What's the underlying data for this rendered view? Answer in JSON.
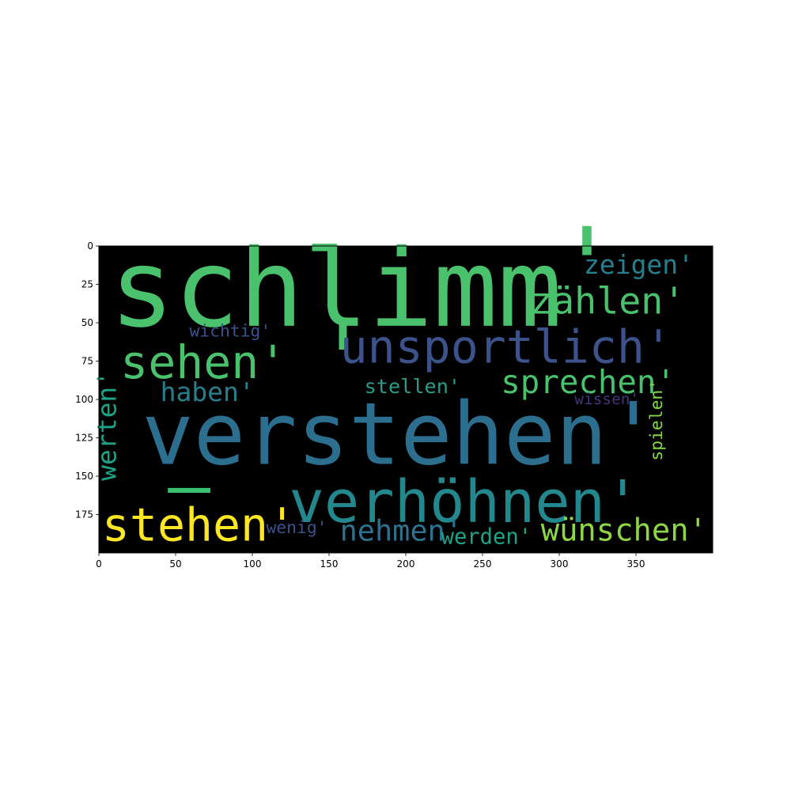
{
  "chart_data": {
    "type": "wordcloud",
    "title": "",
    "xlabel": "",
    "ylabel": "",
    "xlim": [
      0,
      400
    ],
    "ylim": [
      200,
      0
    ],
    "xticks": [
      0,
      50,
      100,
      150,
      200,
      250,
      300,
      350
    ],
    "yticks": [
      0,
      25,
      50,
      75,
      100,
      125,
      150,
      175
    ],
    "background": "#000000",
    "words": [
      {
        "text": "schlimm",
        "size": 70,
        "x": 7,
        "y": 52,
        "color": "#4ac16d",
        "rotate": 0
      },
      {
        "text": "'",
        "size": 70,
        "x": 297,
        "y": 38,
        "color": "#4ac16d",
        "rotate": 0
      },
      {
        "text": "zeigen'",
        "size": 17,
        "x": 316,
        "y": 18,
        "color": "#277f8e",
        "rotate": 0
      },
      {
        "text": "zählen'",
        "size": 24,
        "x": 281,
        "y": 44,
        "color": "#4ac16d",
        "rotate": 0
      },
      {
        "text": "'",
        "size": 60,
        "x": 141,
        "y": 95,
        "color": "#4ac16d",
        "rotate": 0
      },
      {
        "text": "unsportlich'",
        "size": 30,
        "x": 157,
        "y": 76,
        "color": "#3b528b",
        "rotate": 0
      },
      {
        "text": "sehen'",
        "size": 30,
        "x": 14,
        "y": 86,
        "color": "#4ac16d",
        "rotate": 0
      },
      {
        "text": "wichtig'",
        "size": 11,
        "x": 59,
        "y": 59,
        "color": "#3b528b",
        "rotate": 0
      },
      {
        "text": "haben'",
        "size": 17,
        "x": 40,
        "y": 101,
        "color": "#277f8e",
        "rotate": 0
      },
      {
        "text": "stellen'",
        "size": 13,
        "x": 173,
        "y": 96,
        "color": "#2a9d8a",
        "rotate": 0
      },
      {
        "text": "sprechen'",
        "size": 21,
        "x": 262,
        "y": 96,
        "color": "#4ac16d",
        "rotate": 0
      },
      {
        "text": "wissen'",
        "size": 10,
        "x": 310,
        "y": 103,
        "color": "#46337e",
        "rotate": 0
      },
      {
        "text": "werten'",
        "size": 17,
        "x": 11,
        "y": 153,
        "color": "#1fa287",
        "rotate": 270
      },
      {
        "text": "verstehen'",
        "size": 56,
        "x": 28,
        "y": 142,
        "color": "#2c6e8e",
        "rotate": 0
      },
      {
        "text": "spielen'",
        "size": 11,
        "x": 367,
        "y": 140,
        "color": "#86d549",
        "rotate": 270
      },
      {
        "text": "—",
        "size": 46,
        "x": 45,
        "y": 172,
        "color": "#3ac16d",
        "rotate": 0
      },
      {
        "text": "verhöhnen'",
        "size": 38,
        "x": 124,
        "y": 180,
        "color": "#23888e",
        "rotate": 0
      },
      {
        "text": "stehen'",
        "size": 30,
        "x": 2,
        "y": 192,
        "color": "#fde725",
        "rotate": 0
      },
      {
        "text": "wenig'",
        "size": 11,
        "x": 109,
        "y": 187,
        "color": "#3b528b",
        "rotate": 0
      },
      {
        "text": "nehmen'",
        "size": 19,
        "x": 157,
        "y": 192,
        "color": "#2c728e",
        "rotate": 0
      },
      {
        "text": "werden'",
        "size": 14,
        "x": 223,
        "y": 194,
        "color": "#1fa187",
        "rotate": 0
      },
      {
        "text": "wünschen'",
        "size": 20,
        "x": 288,
        "y": 192,
        "color": "#8ed645",
        "rotate": 0
      }
    ]
  }
}
